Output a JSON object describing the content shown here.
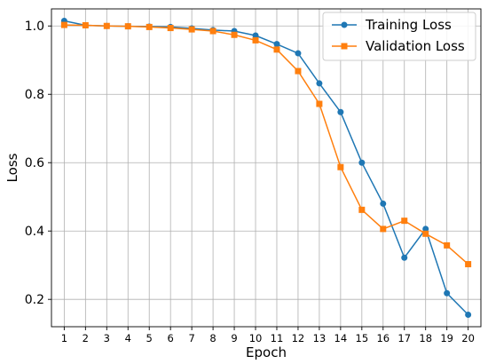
{
  "chart_data": {
    "type": "line",
    "xlabel": "Epoch",
    "ylabel": "Loss",
    "x": [
      1,
      2,
      3,
      4,
      5,
      6,
      7,
      8,
      9,
      10,
      11,
      12,
      13,
      14,
      15,
      16,
      17,
      18,
      19,
      20
    ],
    "xlim": [
      0.4,
      20.6
    ],
    "ylim": [
      0.12,
      1.05
    ],
    "yticks": [
      0.2,
      0.4,
      0.6,
      0.8,
      1.0
    ],
    "yticklabels": [
      "0.2",
      "0.4",
      "0.6",
      "0.8",
      "1.0"
    ],
    "grid": true,
    "legend_position": "top-right",
    "series": [
      {
        "name": "Training Loss",
        "color": "#1f77b4",
        "marker": "circle",
        "values": [
          1.015,
          1.002,
          1.0,
          0.999,
          0.998,
          0.997,
          0.993,
          0.988,
          0.985,
          0.972,
          0.947,
          0.92,
          0.832,
          0.748,
          0.6,
          0.48,
          0.322,
          0.406,
          0.218,
          0.155
        ]
      },
      {
        "name": "Validation Loss",
        "color": "#ff7f0e",
        "marker": "square",
        "values": [
          1.003,
          1.002,
          1.0,
          0.999,
          0.997,
          0.994,
          0.99,
          0.985,
          0.974,
          0.958,
          0.931,
          0.868,
          0.772,
          0.587,
          0.462,
          0.406,
          0.43,
          0.392,
          0.358,
          0.303
        ]
      }
    ]
  }
}
